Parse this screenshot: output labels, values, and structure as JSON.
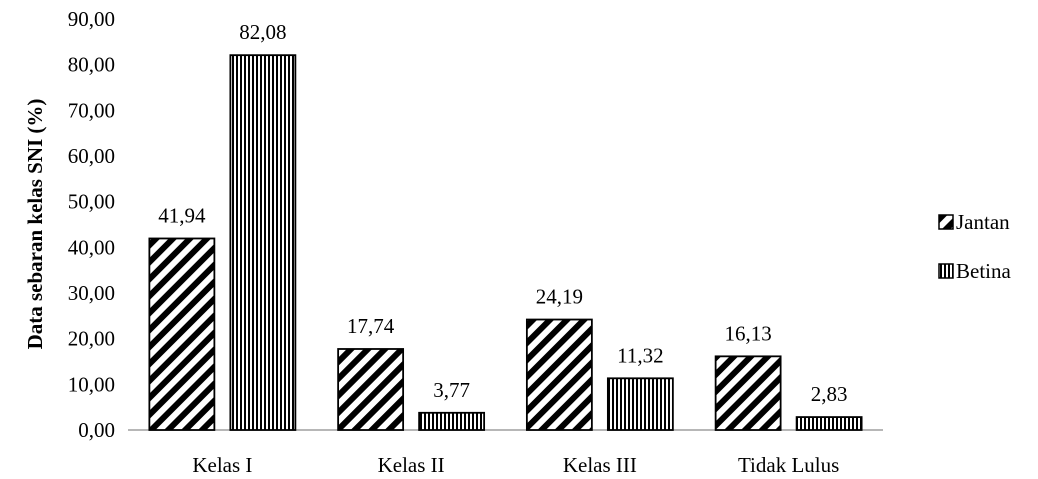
{
  "chart_data": {
    "type": "bar",
    "ylabel": "Data sebaran kelas SNI (%)",
    "xlabel": "",
    "title": "",
    "categories": [
      "Kelas I",
      "Kelas II",
      "Kelas III",
      "Tidak Lulus"
    ],
    "series": [
      {
        "name": "Jantan",
        "values": [
          41.94,
          17.74,
          24.19,
          16.13
        ],
        "value_labels": [
          "41,94",
          "17,74",
          "24,19",
          "16,13"
        ],
        "pattern": "diagonal-stripes"
      },
      {
        "name": "Betina",
        "values": [
          82.08,
          3.77,
          11.32,
          2.83
        ],
        "value_labels": [
          "82,08",
          "3,77",
          "11,32",
          "2,83"
        ],
        "pattern": "vertical-stripes"
      }
    ],
    "ylim": [
      0,
      90
    ],
    "yticks": [
      "0,00",
      "10,00",
      "20,00",
      "30,00",
      "40,00",
      "50,00",
      "60,00",
      "70,00",
      "80,00",
      "90,00"
    ],
    "grid": false,
    "legend_position": "right",
    "colors": {
      "bar_stroke": "#000000",
      "pattern": "#000000",
      "background": "#ffffff",
      "axis": "#8c8c8c"
    }
  }
}
